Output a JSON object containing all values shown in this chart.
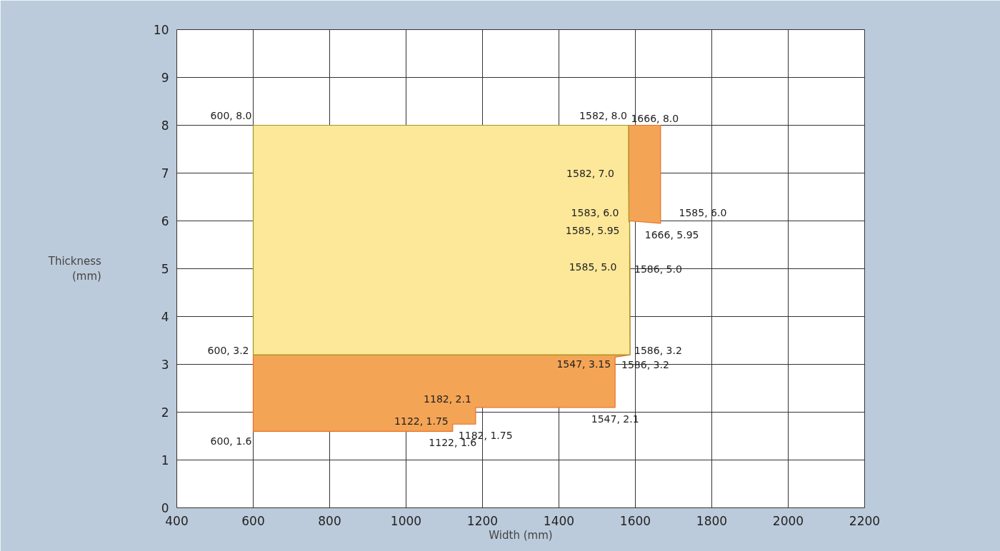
{
  "chart_data": {
    "type": "area",
    "xlabel": "Width (mm)",
    "ylabel": "Thickness (mm)",
    "xlim": [
      400,
      2200
    ],
    "ylim": [
      0,
      10
    ],
    "xticks": [
      400,
      600,
      800,
      1000,
      1200,
      1400,
      1600,
      1800,
      2000,
      2200
    ],
    "yticks": [
      0,
      1,
      2,
      3,
      4,
      5,
      6,
      7,
      8,
      9,
      10
    ],
    "grid": true,
    "series": [
      {
        "color": "#f4a455",
        "x": [
          600,
          600,
          1586,
          1586,
          1585,
          1666,
          1666,
          1582,
          1582,
          1583,
          1585,
          1585,
          1586,
          1547,
          1547,
          1182,
          1182,
          1122,
          1122
        ],
        "values": [
          1.6,
          3.2,
          3.2,
          5.0,
          6.0,
          5.95,
          8.0,
          8.0,
          7.0,
          6.0,
          5.95,
          5.0,
          3.2,
          3.15,
          2.1,
          2.1,
          1.75,
          1.75,
          1.6
        ]
      },
      {
        "color": "#fde899",
        "x": [
          600,
          600,
          1582,
          1582,
          1583,
          1585,
          1585,
          1586
        ],
        "values": [
          3.2,
          8.0,
          8.0,
          7.0,
          6.0,
          5.95,
          5.0,
          3.2
        ]
      }
    ],
    "annotations": [
      {
        "text": "600, 8.0",
        "x": 600,
        "y": 8.0
      },
      {
        "text": "1582, 8.0",
        "x": 1582,
        "y": 8.0
      },
      {
        "text": "1666, 8.0",
        "x": 1666,
        "y": 8.0
      },
      {
        "text": "1582, 7.0",
        "x": 1582,
        "y": 7.0
      },
      {
        "text": "1583, 6.0",
        "x": 1583,
        "y": 6.0
      },
      "1585, 6.0",
      {
        "text": "1666, 5.95",
        "x": 1666,
        "y": 5.95
      },
      {
        "text": "1585, 5.95",
        "x": 1585,
        "y": 5.95
      },
      {
        "text": "1585, 5.0",
        "x": 1585,
        "y": 5.0
      },
      {
        "text": "1586, 5.0",
        "x": 1586,
        "y": 5.0
      },
      {
        "text": "600, 3.2",
        "x": 600,
        "y": 3.2
      },
      {
        "text": "1586, 3.2",
        "x": 1586,
        "y": 3.2
      },
      {
        "text": "1547, 3.15",
        "x": 1547,
        "y": 3.15
      },
      {
        "text": "1586, 3.2",
        "x": 1586,
        "y": 3.2
      },
      {
        "text": "1182, 2.1",
        "x": 1182,
        "y": 2.1
      },
      {
        "text": "1547, 2.1",
        "x": 1547,
        "y": 2.1
      },
      {
        "text": "1122, 1.75",
        "x": 1122,
        "y": 1.75
      },
      {
        "text": "1182, 1.75",
        "x": 1182,
        "y": 1.75
      },
      {
        "text": "600, 1.6",
        "x": 600,
        "y": 1.6
      },
      {
        "text": "1122, 1.6",
        "x": 1122,
        "y": 1.6
      }
    ]
  }
}
